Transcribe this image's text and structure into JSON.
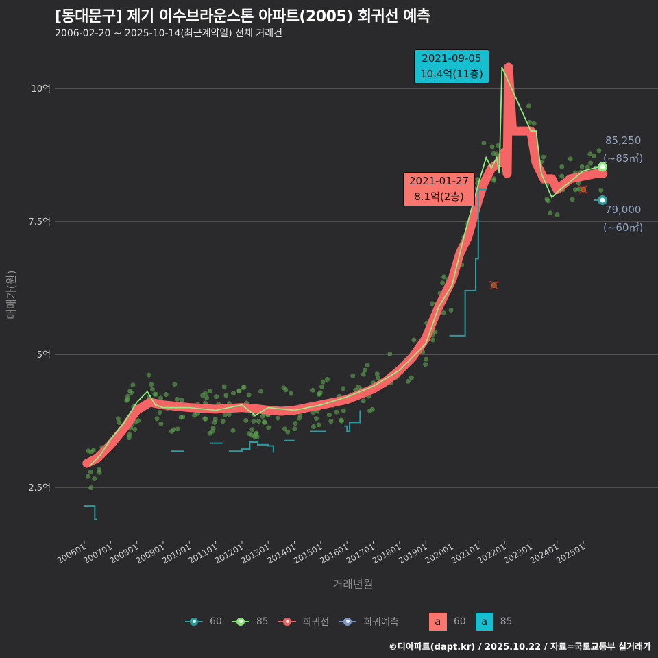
{
  "header": {
    "title": "[동대문구] 제기 이수브라운스톤 아파트(2005) 회귀선 예측",
    "subtitle": "2006-02-20 ~ 2025-10-14(최근계약일) 전체 거래건"
  },
  "axes": {
    "y_title": "매매가(원)",
    "x_title": "거래년월",
    "y_ticks": [
      {
        "label": "10억",
        "value": 10
      },
      {
        "label": "7.5억",
        "value": 7.5
      },
      {
        "label": "5억",
        "value": 5
      },
      {
        "label": "2.5억",
        "value": 2.5
      }
    ],
    "x_ticks": [
      "200601",
      "200701",
      "200801",
      "200901",
      "201001",
      "201101",
      "201201",
      "201301",
      "201401",
      "201501",
      "201601",
      "201701",
      "201801",
      "201901",
      "202001",
      "202101",
      "202201",
      "202301",
      "202401",
      "202501"
    ]
  },
  "annotations": {
    "max_85": {
      "date": "2021-09-05",
      "price": "10.4억(11층)",
      "color": "#17becf"
    },
    "max_60": {
      "date": "2021-01-27",
      "price": "8.1억(2층)",
      "color": "#f8766d"
    }
  },
  "end_labels": {
    "85": {
      "value": "85,250",
      "area": "(~85㎡)"
    },
    "60": {
      "value": "79,000",
      "area": "(~60㎡)"
    }
  },
  "legend": {
    "items": [
      {
        "label": "60",
        "color": "#2a9d9d"
      },
      {
        "label": "85",
        "color": "#8be07a"
      },
      {
        "label": "회귀선",
        "color": "#f06060"
      },
      {
        "label": "회귀예측",
        "color": "#7d97c4"
      }
    ],
    "boxes": [
      {
        "glyph": "a",
        "label": "60",
        "color": "#f8766d"
      },
      {
        "glyph": "a",
        "label": "85",
        "color": "#17becf"
      }
    ]
  },
  "footer": "©디아파트(dapt.kr) / 2025.10.22 / 자료=국토교통부 실거래가",
  "colors": {
    "background": "#2a292b",
    "grid": "#6a6a6a",
    "regression": "#f56565",
    "series_85": "#90ee80",
    "series_60": "#2a9da0",
    "scatter_85": "#5c9e50",
    "prediction": "#7d97c4"
  },
  "chart_data": {
    "type": "line",
    "title": "[동대문구] 제기 이수브라운스톤 아파트(2005) 회귀선 예측",
    "xlabel": "거래년월",
    "ylabel": "매매가(원)",
    "ylim": [
      1.6,
      10.7
    ],
    "y_unit": "억",
    "grid": true,
    "legend_position": "bottom",
    "series": [
      {
        "name": "회귀선",
        "x": [
          2006.1,
          2006.5,
          2007.0,
          2007.5,
          2008.0,
          2008.5,
          2009.0,
          2010.0,
          2011.0,
          2012.0,
          2012.5,
          2013.0,
          2013.5,
          2014.0,
          2015.0,
          2016.0,
          2016.5,
          2017.0,
          2017.5,
          2018.0,
          2018.5,
          2019.0,
          2019.5,
          2020.0,
          2020.3,
          2020.6,
          2021.0,
          2021.2,
          2021.5,
          2021.8,
          2022.0,
          2022.1,
          2022.15,
          2022.3,
          2022.5,
          2023.0,
          2023.2,
          2023.3,
          2023.5,
          2023.8,
          2024.0,
          2024.5,
          2025.0,
          2025.5,
          2025.75
        ],
        "values": [
          2.95,
          3.05,
          3.3,
          3.6,
          3.95,
          4.1,
          4.05,
          4.0,
          3.97,
          4.0,
          3.98,
          3.95,
          3.93,
          3.95,
          4.05,
          4.15,
          4.25,
          4.35,
          4.5,
          4.7,
          4.95,
          5.3,
          5.9,
          6.4,
          6.9,
          7.2,
          7.9,
          8.2,
          8.5,
          8.6,
          8.8,
          8.4,
          10.4,
          9.2,
          9.2,
          9.2,
          8.6,
          8.5,
          8.3,
          8.3,
          8.1,
          8.3,
          8.35,
          8.4,
          8.4
        ]
      },
      {
        "name": "85",
        "x": [
          2006.2,
          2006.6,
          2007.0,
          2007.5,
          2008.0,
          2008.4,
          2008.7,
          2009.0,
          2010.0,
          2011.0,
          2012.0,
          2012.5,
          2013.0,
          2014.0,
          2015.0,
          2016.0,
          2017.0,
          2018.0,
          2019.0,
          2019.5,
          2020.0,
          2020.5,
          2021.0,
          2021.3,
          2021.5,
          2021.7,
          2021.8,
          2021.9,
          2023.0,
          2023.2,
          2023.4,
          2023.8,
          2024.0,
          2024.5,
          2025.0,
          2025.4,
          2025.75
        ],
        "values": [
          2.9,
          3.1,
          3.4,
          3.7,
          4.1,
          4.3,
          4.05,
          4.0,
          4.0,
          3.95,
          4.05,
          3.85,
          4.0,
          3.95,
          4.05,
          4.2,
          4.4,
          4.7,
          5.2,
          5.9,
          6.3,
          7.3,
          8.2,
          8.7,
          8.5,
          8.7,
          8.4,
          10.4,
          9.2,
          9.2,
          8.4,
          7.95,
          8.05,
          8.25,
          8.45,
          8.5,
          8.53
        ]
      },
      {
        "name": "60",
        "segments": [
          {
            "x": [
              2006.0,
              2006.3,
              2006.4,
              2006.5
            ],
            "values": [
              2.15,
              2.15,
              1.9,
              1.9
            ]
          },
          {
            "x": [
              2009.3,
              2009.8
            ],
            "values": [
              3.18,
              3.18
            ]
          },
          {
            "x": [
              2010.8,
              2011.3
            ],
            "values": [
              3.33,
              3.33
            ]
          },
          {
            "x": [
              2011.5,
              2012.0,
              2012.3,
              2012.6,
              2013.0,
              2013.2
            ],
            "values": [
              3.18,
              3.22,
              3.35,
              3.3,
              3.28,
              3.15
            ]
          },
          {
            "x": [
              2013.6,
              2014.0
            ],
            "values": [
              3.38,
              3.38
            ]
          },
          {
            "x": [
              2014.6,
              2015.2
            ],
            "values": [
              3.55,
              3.55
            ]
          },
          {
            "x": [
              2015.9,
              2016.0,
              2016.1,
              2016.4,
              2016.5
            ],
            "values": [
              3.65,
              3.55,
              3.72,
              3.72,
              3.95
            ]
          },
          {
            "x": [
              2019.9,
              2020.3,
              2020.5,
              2020.9,
              2021.0,
              2021.3
            ],
            "values": [
              5.35,
              5.35,
              6.2,
              6.8,
              8.1,
              8.1
            ]
          }
        ]
      },
      {
        "name": "회귀예측",
        "points": [
          {
            "series": "85",
            "x": 2025.75,
            "value": 8.525,
            "label": "85,250"
          },
          {
            "series": "60",
            "x": 2025.75,
            "value": 7.9,
            "label": "79,000"
          }
        ]
      }
    ],
    "annotations": [
      {
        "text": "2021-09-05 10.4억(11층)",
        "x": 2021.7,
        "value": 10.4
      },
      {
        "text": "2021-01-27 8.1억(2층)",
        "x": 2021.1,
        "value": 8.1
      }
    ],
    "outliers_marked": [
      {
        "x": 2021.6,
        "value": 6.3
      },
      {
        "x": 2025.0,
        "value": 8.1
      }
    ]
  }
}
